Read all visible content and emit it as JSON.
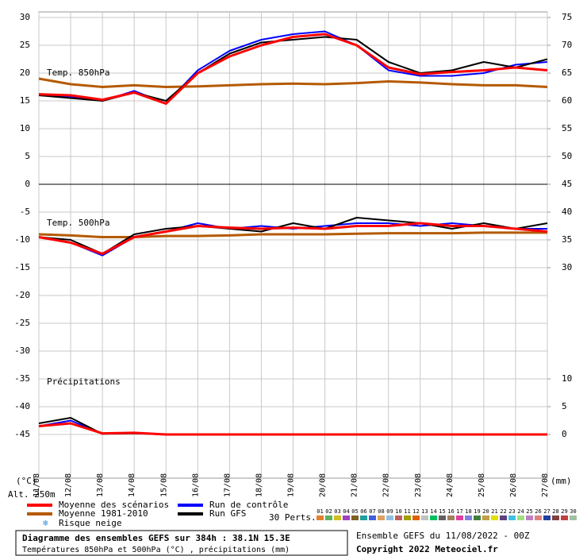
{
  "chart_data": {
    "type": "line",
    "title": "Diagramme des ensembles GEFS sur 384h : 38.1N 15.3E",
    "subtitle": "Températures 850hPa et 500hPa (°C) , précipitations (mm)",
    "run_info": "Ensemble GEFS du 11/08/2022 - 00Z",
    "copyright": "Copyright 2022 Meteociel.fr",
    "y_label": "(°C)",
    "y2_label": "(mm)",
    "altitude": "Alt. 250m",
    "snow_risk": "Risque neige",
    "panel_labels": [
      "Temp. 850hPa",
      "Temp. 500hPa",
      "Précipitations"
    ],
    "perturbations_label": "30 Perts.",
    "perturbations": [
      {
        "label": "01",
        "color": "#e08030"
      },
      {
        "label": "02",
        "color": "#60b060"
      },
      {
        "label": "03",
        "color": "#d0c020"
      },
      {
        "label": "04",
        "color": "#a040c0"
      },
      {
        "label": "05",
        "color": "#806020"
      },
      {
        "label": "06",
        "color": "#20a0a0"
      },
      {
        "label": "07",
        "color": "#4060e0"
      },
      {
        "label": "08",
        "color": "#e0a060"
      },
      {
        "label": "09",
        "color": "#90c0e0"
      },
      {
        "label": "10",
        "color": "#c06060"
      },
      {
        "label": "11",
        "color": "#a0a000"
      },
      {
        "label": "12",
        "color": "#e06000"
      },
      {
        "label": "13",
        "color": "#c0c0c0"
      },
      {
        "label": "14",
        "color": "#00c060"
      },
      {
        "label": "15",
        "color": "#606060"
      },
      {
        "label": "16",
        "color": "#a08060"
      },
      {
        "label": "17",
        "color": "#e040a0"
      },
      {
        "label": "18",
        "color": "#8080e0"
      },
      {
        "label": "19",
        "color": "#408040"
      },
      {
        "label": "20",
        "color": "#c0a040"
      },
      {
        "label": "21",
        "color": "#e0e000"
      },
      {
        "label": "22",
        "color": "#604080"
      },
      {
        "label": "23",
        "color": "#40c0e0"
      },
      {
        "label": "24",
        "color": "#a0e080"
      },
      {
        "label": "25",
        "color": "#c080c0"
      },
      {
        "label": "26",
        "color": "#e08080"
      },
      {
        "label": "27",
        "color": "#2040a0"
      },
      {
        "label": "28",
        "color": "#804040"
      },
      {
        "label": "29",
        "color": "#c04040"
      },
      {
        "label": "30",
        "color": "#a0c0a0"
      }
    ],
    "x": [
      0,
      24,
      48,
      72,
      96,
      120,
      144,
      168,
      192,
      216,
      240,
      264,
      288,
      312,
      336,
      360,
      384
    ],
    "xlim": [
      0,
      384
    ],
    "xticks": [
      {
        "value": 0,
        "label": "11/08"
      },
      {
        "value": 24,
        "label": "12/08"
      },
      {
        "value": 48,
        "label": "13/08"
      },
      {
        "value": 72,
        "label": "14/08"
      },
      {
        "value": 96,
        "label": "15/08"
      },
      {
        "value": 120,
        "label": "16/08"
      },
      {
        "value": 144,
        "label": "17/08"
      },
      {
        "value": 168,
        "label": "18/08"
      },
      {
        "value": 192,
        "label": "19/08"
      },
      {
        "value": 216,
        "label": "20/08"
      },
      {
        "value": 240,
        "label": "21/08"
      },
      {
        "value": 264,
        "label": "22/08"
      },
      {
        "value": 288,
        "label": "23/08"
      },
      {
        "value": 312,
        "label": "24/08"
      },
      {
        "value": 336,
        "label": "25/08"
      },
      {
        "value": 360,
        "label": "26/08"
      },
      {
        "value": 384,
        "label": "27/08"
      }
    ],
    "ylim": [
      -53,
      31
    ],
    "yticks": [
      30,
      25,
      20,
      15,
      10,
      5,
      0,
      -5,
      -10,
      -15,
      -20,
      -25,
      -30,
      -35,
      -40,
      -45
    ],
    "y2lim": [
      -8,
      76
    ],
    "y2ticks": [
      75,
      70,
      65,
      60,
      55,
      50,
      45,
      40,
      35,
      30,
      10,
      5,
      0
    ],
    "grid": true,
    "series": [
      {
        "name": "Moyenne 1981-2010",
        "color": "#b45a00",
        "width": 3,
        "values": [
          19,
          18,
          17.5,
          17.8,
          17.5,
          17.6,
          17.8,
          18,
          18.1,
          18,
          18.2,
          18.5,
          18.3,
          18,
          17.8,
          17.8,
          17.5
        ]
      },
      {
        "name": "Run de contrôle",
        "color": "#0000ff",
        "width": 2,
        "values": [
          16,
          15.8,
          15,
          16.8,
          14.5,
          20.5,
          24,
          26,
          27,
          27.5,
          25,
          20.5,
          19.5,
          19.5,
          20,
          21.5,
          22
        ]
      },
      {
        "name": "Run GFS",
        "color": "#000000",
        "width": 2,
        "values": [
          16,
          15.5,
          15,
          16.5,
          15,
          20,
          23.5,
          25.5,
          26,
          26.5,
          26,
          22,
          20,
          20.5,
          22,
          21,
          22.5
        ]
      },
      {
        "name": "Moyenne des scénarios",
        "color": "#ff0000",
        "width": 3,
        "values": [
          16.2,
          16,
          15.2,
          16.5,
          14.5,
          20,
          23,
          25,
          26.5,
          27,
          25,
          21,
          19.8,
          20.2,
          20.5,
          21,
          20.5
        ]
      },
      {
        "name": "Moyenne 1981-2010",
        "color": "#b45a00",
        "width": 3,
        "values": [
          -9,
          -9.2,
          -9.5,
          -9.5,
          -9.3,
          -9.3,
          -9.2,
          -9,
          -9,
          -9,
          -8.9,
          -8.8,
          -8.8,
          -8.8,
          -8.7,
          -8.7,
          -8.7
        ]
      },
      {
        "name": "Run de contrôle",
        "color": "#0000ff",
        "width": 2,
        "values": [
          -9.5,
          -10.5,
          -12.8,
          -9.5,
          -8.5,
          -7,
          -8,
          -7.5,
          -8,
          -7.5,
          -7,
          -7,
          -7.5,
          -7,
          -7.5,
          -8,
          -8
        ]
      },
      {
        "name": "Run GFS",
        "color": "#000000",
        "width": 2,
        "values": [
          -9.5,
          -10,
          -12.5,
          -9,
          -8,
          -7.5,
          -8,
          -8.5,
          -7,
          -8,
          -6,
          -6.5,
          -7,
          -8,
          -7,
          -8,
          -7
        ]
      },
      {
        "name": "Moyenne des scénarios",
        "color": "#ff0000",
        "width": 3,
        "values": [
          -9.5,
          -10.5,
          -12.5,
          -9.5,
          -8.5,
          -7.5,
          -7.8,
          -8,
          -7.8,
          -8,
          -7.5,
          -7.5,
          -7,
          -7.5,
          -7.5,
          -8,
          -8.5
        ]
      },
      {
        "name": "Run de contrôle",
        "color": "#0000ff",
        "width": 2,
        "axis": "y2",
        "values": [
          1.5,
          2.5,
          0.2,
          0.3,
          0,
          0,
          0,
          0,
          0,
          0,
          0,
          0,
          0,
          0,
          0,
          0,
          0
        ]
      },
      {
        "name": "Run GFS",
        "color": "#000000",
        "width": 2,
        "axis": "y2",
        "values": [
          2,
          3,
          0.1,
          0.2,
          0,
          0,
          0,
          0,
          0,
          0,
          0,
          0,
          0,
          0,
          0,
          0,
          0
        ]
      },
      {
        "name": "Moyenne des scénarios",
        "color": "#ff0000",
        "width": 3,
        "axis": "y2",
        "values": [
          1.5,
          2,
          0.2,
          0.3,
          0,
          0,
          0,
          0,
          0,
          0,
          0,
          0,
          0,
          0,
          0,
          0,
          0
        ]
      }
    ]
  }
}
